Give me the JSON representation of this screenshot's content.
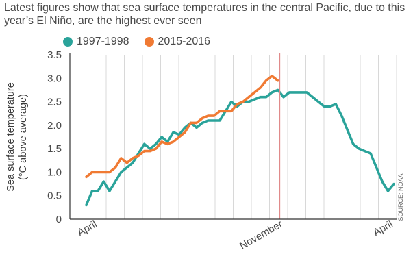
{
  "title": "Latest figures show that sea surface temperatures in the central Pacific, due to this year’s El Niño, are the highest ever seen",
  "source": "SOURCE: NOAA",
  "colors": {
    "series_1997": "#2aa39a",
    "series_2015": "#f07a33",
    "marker": "#e08a8a",
    "grid": "#d8d8d8",
    "axis": "#333333"
  },
  "chart_data": {
    "type": "line",
    "title": "Latest figures show that sea surface temperatures in the central Pacific, due to this year’s El Niño, are the highest ever seen",
    "ylabel": [
      "Sea surface temperature",
      "(°C above average)"
    ],
    "xlabel": "",
    "ylim": [
      0,
      3.5
    ],
    "yticks": [
      0,
      0.5,
      1.0,
      1.5,
      2.0,
      2.5,
      3.0,
      3.5
    ],
    "ytick_labels": [
      "0",
      "0.5",
      "1.0",
      "1.5",
      "2.0",
      "2.5",
      "3.0",
      "3.5"
    ],
    "xlim": [
      0,
      53
    ],
    "xticks": [
      {
        "x": 1,
        "label": "April"
      },
      {
        "x": 33,
        "label": "November"
      },
      {
        "x": 52,
        "label": "April"
      }
    ],
    "vertical_marker_x": 33,
    "grid": "vertical",
    "legend_placement": "top-left",
    "series": [
      {
        "name": "1997-1998",
        "color": "#2aa39a",
        "x": [
          0,
          1,
          2,
          3,
          4,
          5,
          6,
          7,
          8,
          9,
          10,
          11,
          12,
          13,
          14,
          15,
          16,
          17,
          18,
          19,
          20,
          21,
          22,
          23,
          24,
          25,
          26,
          27,
          28,
          29,
          30,
          31,
          32,
          33,
          34,
          35,
          36,
          37,
          38,
          39,
          40,
          41,
          42,
          43,
          44,
          45,
          46,
          47,
          48,
          49,
          50,
          51,
          52,
          53
        ],
        "values": [
          0.3,
          0.6,
          0.6,
          0.8,
          0.6,
          0.8,
          1.0,
          1.1,
          1.2,
          1.4,
          1.6,
          1.5,
          1.6,
          1.75,
          1.65,
          1.85,
          1.8,
          1.95,
          2.05,
          1.95,
          2.05,
          2.1,
          2.1,
          2.1,
          2.3,
          2.5,
          2.4,
          2.5,
          2.5,
          2.55,
          2.6,
          2.6,
          2.7,
          2.75,
          2.6,
          2.7,
          2.7,
          2.7,
          2.7,
          2.6,
          2.5,
          2.4,
          2.4,
          2.45,
          2.2,
          1.9,
          1.6,
          1.5,
          1.45,
          1.4,
          1.1,
          0.8,
          0.6,
          0.75
        ]
      },
      {
        "name": "2015-2016",
        "color": "#f07a33",
        "x": [
          0,
          1,
          2,
          3,
          4,
          5,
          6,
          7,
          8,
          9,
          10,
          11,
          12,
          13,
          14,
          15,
          16,
          17,
          18,
          19,
          20,
          21,
          22,
          23,
          24,
          25,
          26,
          27,
          28,
          29,
          30,
          31,
          32,
          33
        ],
        "values": [
          0.9,
          1.0,
          1.0,
          1.0,
          1.0,
          1.1,
          1.3,
          1.2,
          1.3,
          1.35,
          1.45,
          1.45,
          1.5,
          1.65,
          1.6,
          1.65,
          1.75,
          1.85,
          2.05,
          2.05,
          2.15,
          2.2,
          2.2,
          2.3,
          2.3,
          2.3,
          2.45,
          2.5,
          2.6,
          2.7,
          2.8,
          2.95,
          3.05,
          2.95
        ]
      }
    ]
  }
}
